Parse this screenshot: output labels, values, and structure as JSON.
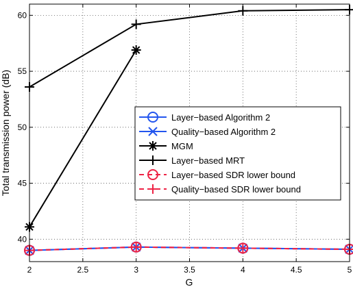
{
  "chart_data": {
    "type": "line",
    "xlabel": "G",
    "ylabel": "Total transmission power (dB)",
    "xlim": [
      2,
      5
    ],
    "ylim": [
      38,
      61
    ],
    "xticks": [
      2,
      2.5,
      3,
      3.5,
      4,
      4.5,
      5
    ],
    "yticks": [
      40,
      45,
      50,
      55,
      60
    ],
    "xtick_labels": [
      "2",
      "2.5",
      "3",
      "3.5",
      "4",
      "4.5",
      "5"
    ],
    "ytick_labels": [
      "40",
      "45",
      "50",
      "55",
      "60"
    ],
    "grid": true,
    "legend_position": "center-right",
    "series": [
      {
        "name": "Layer−based Algorithm 2",
        "color": "#2255ee",
        "marker": "circle",
        "dash": "solid",
        "x": [
          2,
          3,
          4,
          5
        ],
        "y": [
          39.0,
          39.3,
          39.2,
          39.1
        ]
      },
      {
        "name": "Quality−based Algorithm 2",
        "color": "#2255ee",
        "marker": "x",
        "dash": "solid",
        "x": [
          2,
          3,
          4,
          5
        ],
        "y": [
          39.0,
          39.3,
          39.2,
          39.1
        ]
      },
      {
        "name": "MGM",
        "color": "#000000",
        "marker": "star",
        "dash": "solid",
        "x": [
          2,
          3
        ],
        "y": [
          41.1,
          56.9
        ]
      },
      {
        "name": "Layer−based MRT",
        "color": "#000000",
        "marker": "plus",
        "dash": "solid",
        "x": [
          2,
          3,
          4,
          5
        ],
        "y": [
          53.6,
          59.2,
          60.4,
          60.5
        ]
      },
      {
        "name": "Layer−based SDR lower bound",
        "color": "#ee2244",
        "marker": "circle",
        "dash": "dashed",
        "x": [
          2,
          3,
          4,
          5
        ],
        "y": [
          39.0,
          39.3,
          39.2,
          39.1
        ]
      },
      {
        "name": "Quality−based SDR lower bound",
        "color": "#ee2244",
        "marker": "plus",
        "dash": "dashed",
        "x": [
          2,
          3,
          4,
          5
        ],
        "y": [
          39.0,
          39.3,
          39.2,
          39.1
        ]
      }
    ]
  }
}
